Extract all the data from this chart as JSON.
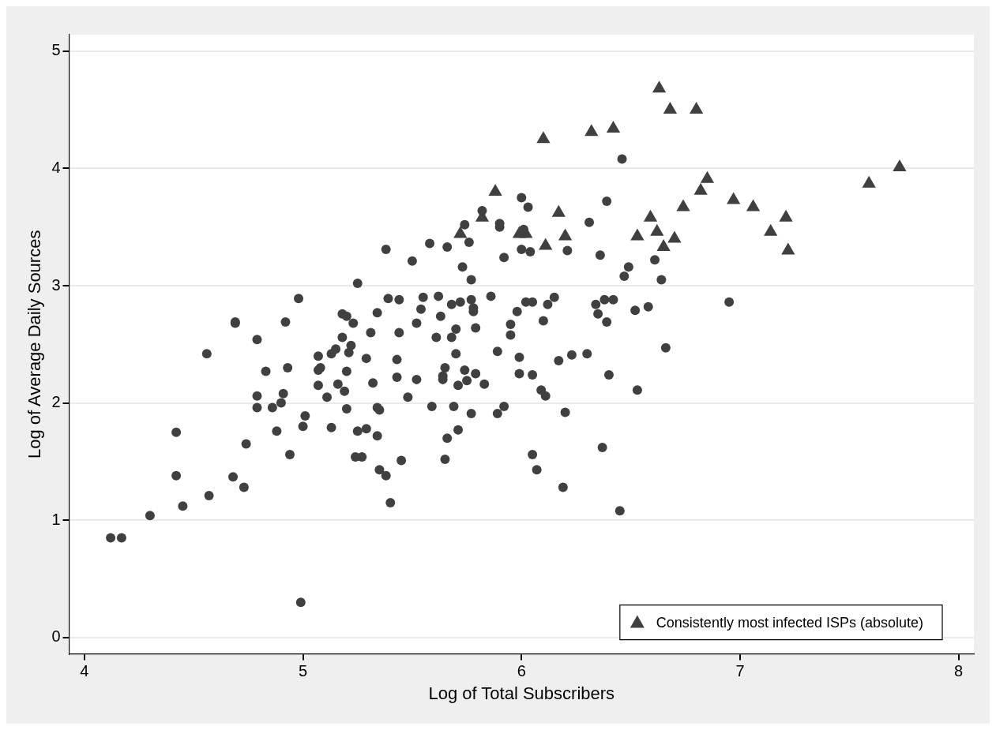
{
  "chart_data": {
    "type": "scatter",
    "xlabel": "Log of Total Subscribers",
    "ylabel": "Log of Average Daily Sources",
    "xlim": [
      3.93,
      8.07
    ],
    "ylim": [
      -0.14,
      5.14
    ],
    "xticks": [
      4,
      5,
      6,
      7,
      8
    ],
    "yticks": [
      0,
      1,
      2,
      3,
      4,
      5
    ],
    "grid": "y",
    "legend": "bottom right",
    "series": [
      {
        "color": "#404040",
        "marker": "circle",
        "x": [
          4.12,
          4.17,
          4.3,
          4.42,
          4.42,
          4.45,
          4.56,
          4.57,
          4.68,
          4.69,
          4.69,
          4.73,
          4.74,
          4.79,
          4.79,
          4.79,
          4.83,
          4.86,
          4.88,
          4.9,
          4.91,
          4.92,
          4.93,
          4.94,
          4.98,
          5.0,
          5.01,
          4.99,
          5.07,
          5.07,
          5.07,
          5.08,
          5.11,
          5.13,
          5.13,
          5.15,
          5.16,
          5.18,
          5.18,
          5.19,
          5.2,
          5.2,
          5.2,
          5.21,
          5.22,
          5.23,
          5.25,
          5.25,
          5.24,
          5.27,
          5.29,
          5.29,
          5.31,
          5.32,
          5.34,
          5.34,
          5.35,
          5.34,
          5.35,
          5.38,
          5.38,
          5.39,
          5.4,
          5.43,
          5.43,
          5.44,
          5.44,
          5.45,
          5.48,
          5.5,
          5.52,
          5.52,
          5.54,
          5.55,
          5.58,
          5.59,
          5.61,
          5.62,
          5.63,
          5.64,
          5.64,
          5.65,
          5.65,
          5.66,
          5.66,
          5.68,
          5.68,
          5.69,
          5.7,
          5.7,
          5.71,
          5.71,
          5.72,
          5.73,
          5.74,
          5.74,
          5.75,
          5.76,
          5.77,
          5.77,
          5.77,
          5.78,
          5.78,
          5.79,
          5.79,
          5.82,
          5.83,
          5.86,
          5.89,
          5.89,
          5.9,
          5.9,
          5.92,
          5.92,
          5.95,
          5.95,
          5.98,
          5.99,
          5.99,
          6.0,
          6.0,
          6.01,
          6.03,
          6.02,
          6.04,
          6.05,
          6.05,
          6.05,
          6.07,
          6.09,
          6.1,
          6.11,
          6.12,
          6.15,
          6.17,
          6.19,
          6.2,
          6.21,
          6.23,
          6.3,
          6.31,
          6.34,
          6.35,
          6.36,
          6.37,
          6.38,
          6.39,
          6.39,
          6.4,
          6.42,
          6.45,
          6.46,
          6.47,
          6.49,
          6.52,
          6.53,
          6.58,
          6.61,
          6.64,
          6.66,
          6.95
        ],
        "values": [
          0.85,
          0.85,
          1.04,
          1.38,
          1.75,
          1.12,
          2.42,
          1.21,
          1.37,
          2.69,
          2.68,
          1.28,
          1.65,
          2.54,
          2.06,
          1.96,
          2.27,
          1.96,
          1.76,
          2.0,
          2.08,
          2.69,
          2.3,
          1.56,
          2.89,
          1.8,
          1.89,
          0.3,
          2.4,
          2.28,
          2.15,
          2.3,
          2.05,
          2.42,
          1.79,
          2.46,
          2.16,
          2.76,
          2.56,
          2.1,
          2.74,
          2.27,
          1.95,
          2.43,
          2.49,
          2.68,
          3.02,
          1.76,
          1.54,
          1.54,
          2.38,
          1.78,
          2.6,
          2.17,
          2.77,
          1.96,
          1.94,
          1.72,
          1.43,
          3.31,
          1.38,
          2.89,
          1.15,
          2.37,
          2.22,
          2.88,
          2.6,
          1.51,
          2.05,
          3.21,
          2.68,
          2.2,
          2.8,
          2.9,
          3.36,
          1.97,
          2.56,
          2.91,
          2.74,
          2.23,
          2.2,
          2.3,
          1.52,
          3.33,
          1.7,
          2.84,
          2.56,
          1.97,
          2.63,
          2.42,
          2.15,
          1.77,
          2.86,
          3.16,
          3.52,
          2.28,
          2.19,
          3.37,
          3.05,
          2.88,
          1.91,
          2.81,
          2.78,
          2.25,
          2.64,
          3.64,
          2.16,
          2.91,
          2.44,
          1.91,
          3.53,
          3.5,
          1.97,
          3.24,
          2.67,
          2.58,
          2.78,
          2.39,
          2.25,
          3.75,
          3.31,
          3.48,
          3.67,
          2.86,
          3.29,
          2.86,
          2.24,
          1.56,
          1.43,
          2.11,
          2.7,
          2.06,
          2.84,
          2.9,
          2.36,
          1.28,
          1.92,
          3.3,
          2.41,
          2.42,
          3.54,
          2.84,
          2.76,
          3.26,
          1.62,
          2.88,
          2.69,
          3.72,
          2.24,
          2.88,
          1.08,
          4.08,
          3.08,
          3.16,
          2.79,
          2.11,
          2.82,
          3.22,
          3.05,
          2.47,
          2.86
        ]
      },
      {
        "name": "Consistently most infected ISPs (absolute)",
        "color": "#404040",
        "marker": "triangle",
        "x": [
          6.1,
          6.32,
          6.42,
          6.63,
          6.68,
          6.8,
          5.88,
          6.85,
          6.82,
          5.82,
          5.72,
          5.99,
          6.02,
          6.17,
          6.11,
          6.2,
          6.59,
          6.62,
          6.53,
          6.65,
          6.7,
          6.74,
          6.97,
          7.06,
          7.14,
          7.21,
          7.22,
          7.59,
          7.73
        ],
        "values": [
          4.25,
          4.31,
          4.34,
          4.68,
          4.5,
          4.5,
          3.8,
          3.91,
          3.81,
          3.58,
          3.44,
          3.44,
          3.44,
          3.62,
          3.34,
          3.42,
          3.58,
          3.46,
          3.42,
          3.33,
          3.4,
          3.67,
          3.73,
          3.67,
          3.46,
          3.58,
          3.3,
          3.87,
          4.01
        ]
      }
    ]
  }
}
